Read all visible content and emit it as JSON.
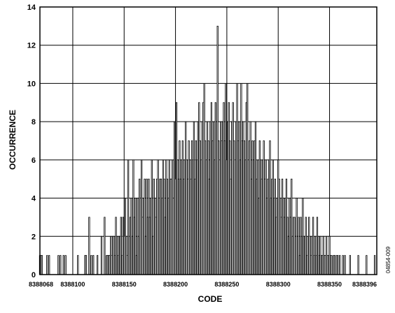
{
  "chart_data": {
    "type": "bar",
    "x_label": "CODE",
    "y_label": "OCCURRENCE",
    "figure_id": "04854-009",
    "x": [
      8388068,
      8388069,
      8388070,
      8388075,
      8388077,
      8388086,
      8388088,
      8388091,
      8388093,
      8388105,
      8388112,
      8388113,
      8388116,
      8388118,
      8388120,
      8388124,
      8388128,
      8388131,
      8388133,
      8388134,
      8388135,
      8388136,
      8388137,
      8388138,
      8388139,
      8388140,
      8388141,
      8388142,
      8388143,
      8388144,
      8388145,
      8388146,
      8388147,
      8388148,
      8388149,
      8388150,
      8388151,
      8388152,
      8388153,
      8388154,
      8388155,
      8388156,
      8388157,
      8388158,
      8388159,
      8388160,
      8388161,
      8388162,
      8388163,
      8388164,
      8388165,
      8388166,
      8388167,
      8388168,
      8388169,
      8388170,
      8388171,
      8388172,
      8388173,
      8388174,
      8388175,
      8388176,
      8388177,
      8388178,
      8388179,
      8388180,
      8388181,
      8388182,
      8388183,
      8388184,
      8388185,
      8388186,
      8388187,
      8388188,
      8388189,
      8388190,
      8388191,
      8388192,
      8388193,
      8388194,
      8388195,
      8388196,
      8388197,
      8388198,
      8388199,
      8388200,
      8388201,
      8388202,
      8388203,
      8388204,
      8388205,
      8388206,
      8388207,
      8388208,
      8388209,
      8388210,
      8388211,
      8388212,
      8388213,
      8388214,
      8388215,
      8388216,
      8388217,
      8388218,
      8388219,
      8388220,
      8388221,
      8388222,
      8388223,
      8388224,
      8388225,
      8388226,
      8388227,
      8388228,
      8388229,
      8388230,
      8388231,
      8388232,
      8388233,
      8388234,
      8388235,
      8388236,
      8388237,
      8388238,
      8388239,
      8388240,
      8388241,
      8388242,
      8388243,
      8388244,
      8388245,
      8388246,
      8388247,
      8388248,
      8388249,
      8388250,
      8388251,
      8388252,
      8388253,
      8388254,
      8388255,
      8388256,
      8388257,
      8388258,
      8388259,
      8388260,
      8388261,
      8388262,
      8388263,
      8388264,
      8388265,
      8388266,
      8388267,
      8388268,
      8388269,
      8388270,
      8388271,
      8388272,
      8388273,
      8388274,
      8388275,
      8388276,
      8388277,
      8388278,
      8388279,
      8388280,
      8388281,
      8388282,
      8388283,
      8388284,
      8388285,
      8388286,
      8388287,
      8388288,
      8388289,
      8388290,
      8388291,
      8388292,
      8388293,
      8388294,
      8388295,
      8388296,
      8388297,
      8388298,
      8388299,
      8388300,
      8388301,
      8388302,
      8388303,
      8388304,
      8388305,
      8388306,
      8388307,
      8388308,
      8388309,
      8388310,
      8388311,
      8388312,
      8388313,
      8388314,
      8388315,
      8388316,
      8388317,
      8388318,
      8388319,
      8388320,
      8388321,
      8388322,
      8388323,
      8388324,
      8388325,
      8388326,
      8388327,
      8388328,
      8388329,
      8388330,
      8388331,
      8388332,
      8388333,
      8388334,
      8388335,
      8388336,
      8388337,
      8388338,
      8388339,
      8388340,
      8388341,
      8388342,
      8388343,
      8388344,
      8388345,
      8388346,
      8388347,
      8388348,
      8388349,
      8388350,
      8388351,
      8388352,
      8388354,
      8388355,
      8388357,
      8388358,
      8388360,
      8388363,
      8388365,
      8388370,
      8388378,
      8388386,
      8388394
    ],
    "values": [
      1,
      1,
      1,
      1,
      1,
      1,
      1,
      1,
      1,
      1,
      1,
      1,
      3,
      1,
      1,
      1,
      2,
      3,
      1,
      1,
      1,
      1,
      2,
      1,
      2,
      2,
      1,
      3,
      2,
      1,
      2,
      2,
      3,
      1,
      3,
      2,
      4,
      2,
      1,
      6,
      2,
      3,
      4,
      2,
      6,
      3,
      4,
      1,
      4,
      2,
      5,
      4,
      6,
      3,
      4,
      5,
      2,
      5,
      3,
      5,
      3,
      4,
      6,
      2,
      5,
      4,
      3,
      5,
      6,
      4,
      5,
      5,
      4,
      6,
      5,
      3,
      6,
      5,
      4,
      6,
      5,
      5,
      6,
      4,
      8,
      5,
      9,
      6,
      5,
      7,
      5,
      6,
      7,
      5,
      6,
      8,
      6,
      5,
      7,
      6,
      5,
      7,
      6,
      8,
      5,
      7,
      6,
      8,
      9,
      7,
      6,
      8,
      9,
      10,
      7,
      6,
      8,
      7,
      5,
      8,
      9,
      7,
      8,
      6,
      9,
      8,
      13,
      7,
      6,
      8,
      7,
      8,
      9,
      7,
      10,
      6,
      8,
      9,
      7,
      5,
      8,
      9,
      7,
      6,
      8,
      10,
      7,
      8,
      6,
      10,
      7,
      8,
      7,
      6,
      9,
      10,
      6,
      7,
      8,
      5,
      7,
      6,
      7,
      8,
      5,
      6,
      4,
      7,
      6,
      5,
      6,
      7,
      5,
      6,
      4,
      5,
      6,
      7,
      4,
      5,
      6,
      4,
      5,
      3,
      4,
      6,
      5,
      4,
      3,
      5,
      4,
      3,
      4,
      5,
      3,
      2,
      4,
      3,
      5,
      2,
      3,
      3,
      2,
      4,
      2,
      3,
      1,
      3,
      2,
      4,
      2,
      2,
      3,
      1,
      2,
      3,
      2,
      1,
      2,
      3,
      1,
      2,
      1,
      3,
      2,
      1,
      2,
      1,
      1,
      2,
      1,
      1,
      2,
      1,
      1,
      2,
      1,
      1,
      1,
      1,
      1,
      1,
      1,
      1,
      1,
      1,
      1,
      1,
      1
    ],
    "color": "#ffffff",
    "xlim": [
      8388068,
      8388396
    ],
    "xticks": [
      8388068,
      8388100,
      8388150,
      8388200,
      8388250,
      8388300,
      8388350,
      8388396
    ],
    "ylim": [
      0,
      14
    ],
    "yticks": [
      0,
      2,
      4,
      6,
      8,
      10,
      12,
      14
    ],
    "grid": true
  }
}
